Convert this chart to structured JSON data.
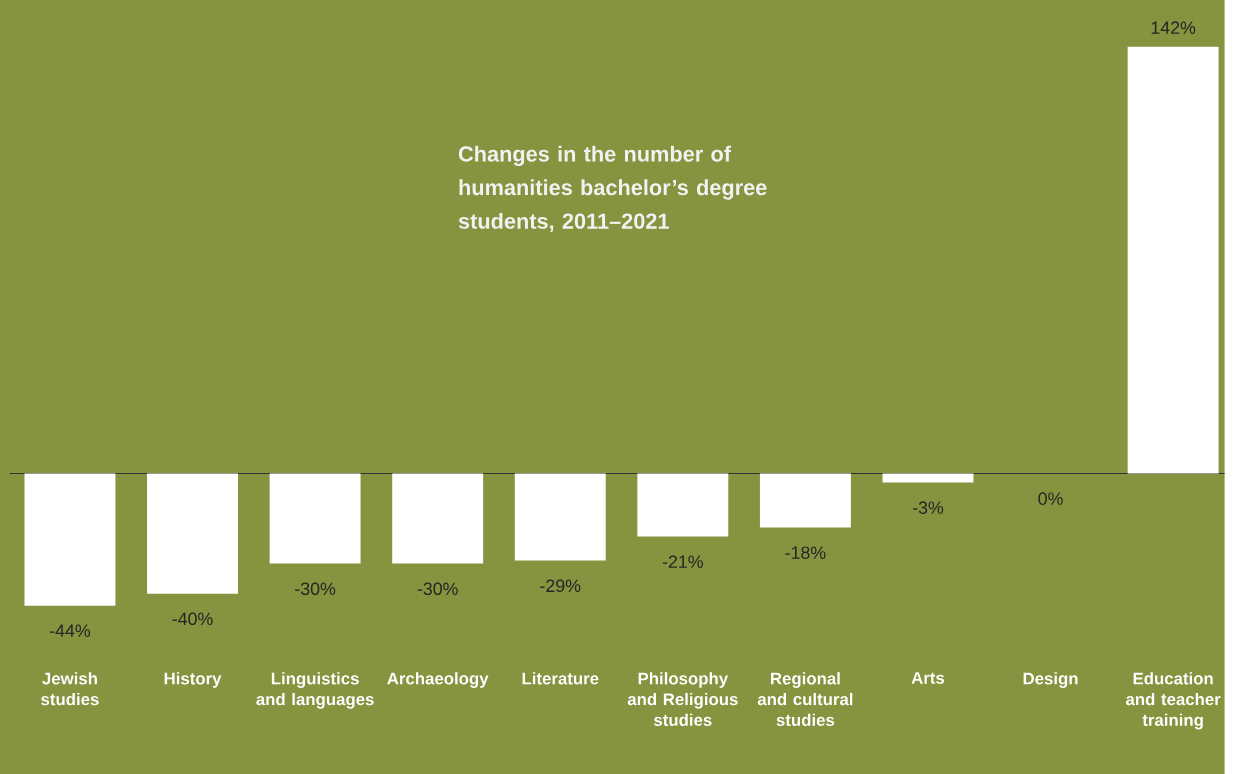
{
  "chart_data": {
    "type": "bar",
    "title": "Changes in the number of humanities bachelor’s degree students, 2011–2021",
    "categories": [
      "Jewish studies",
      "History",
      "Linguistics and languages",
      "Archaeology",
      "Literature",
      "Philosophy and Religious studies",
      "Regional and cultural studies",
      "Arts",
      "Design",
      "Education and teacher training"
    ],
    "values": [
      -44,
      -40,
      -30,
      -30,
      -29,
      -21,
      -18,
      -3,
      0,
      142
    ],
    "value_labels": [
      "-44%",
      "-40%",
      "-30%",
      "-30%",
      "-29%",
      "-21%",
      "-18%",
      "-3%",
      "0%",
      "142%"
    ],
    "color": "#ffffff"
  }
}
